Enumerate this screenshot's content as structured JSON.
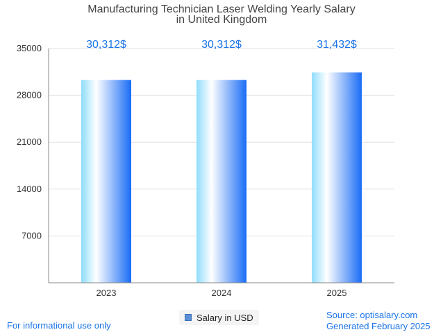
{
  "chart_data": {
    "type": "bar",
    "title_lines": [
      "Manufacturing Technician Laser Welding Yearly Salary",
      "in United Kingdom"
    ],
    "categories": [
      "2023",
      "2024",
      "2025"
    ],
    "series": [
      {
        "name": "Salary in USD",
        "values": [
          30312,
          30312,
          31432
        ]
      }
    ],
    "data_labels": [
      "30,312$",
      "30,312$",
      "31,432$"
    ],
    "yticks": [
      7000,
      14000,
      21000,
      28000,
      35000
    ],
    "ylim": [
      0,
      35000
    ],
    "grid": true,
    "legend_position": "bottom-center",
    "bar_gradient": [
      "#8fdcfb",
      "#ffffff",
      "#1a6cf5"
    ]
  },
  "legend": {
    "label": "Salary in USD"
  },
  "footer": {
    "disclaimer": "For informational use only",
    "source": "Source: optisalary.com",
    "generated": "Generated February 2025"
  }
}
